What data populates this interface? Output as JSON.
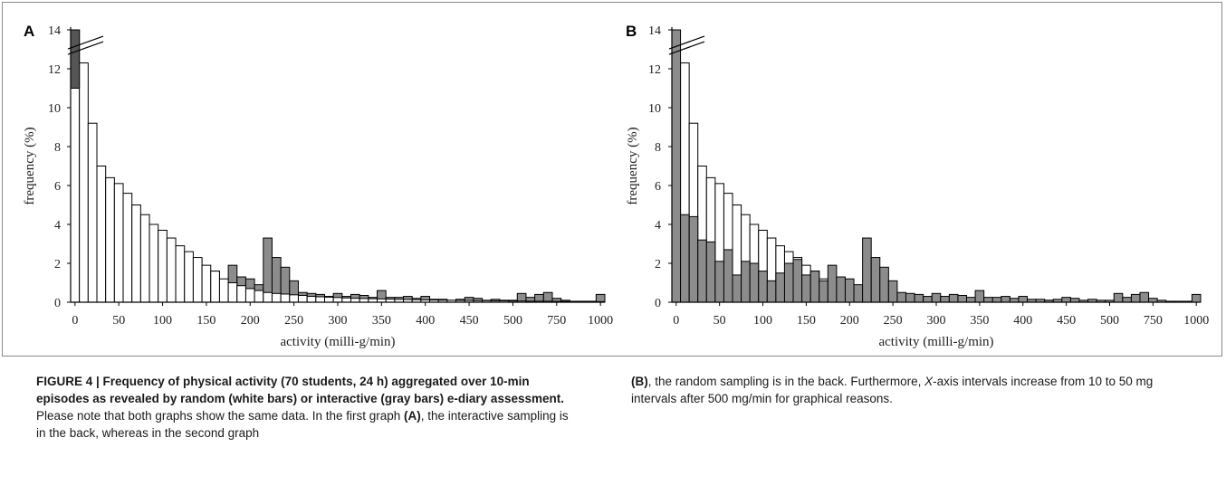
{
  "caption": {
    "figure_label": "FIGURE 4 | Frequency of physical activity (70 students, 24 h) aggregated over 10-min episodes as revealed by random (white bars) or interactive (gray bars) e-diary assessment.",
    "text_1": " Please note that both graphs show the same data. In the first graph ",
    "ref_a": "(A)",
    "text_2": ", the interactive sampling is in the back, whereas in the second graph ",
    "ref_b": "(B)",
    "text_3": ", the random sampling is in the back. Furthermore, ",
    "x_italic": "X",
    "text_4": "-axis intervals increase from 10 to 50 mg intervals after 500 mg/min for graphical reasons."
  },
  "colors": {
    "random": "#ffffff",
    "interactive": "#8c8c8c",
    "interactive_top": "#555555",
    "stroke": "#000000"
  },
  "chart_data": [
    {
      "type": "bar",
      "panel": "A",
      "draw_order": "interactive-back",
      "xlabel": "activity (milli-g/min)",
      "ylabel": "frequency (%)",
      "ylim": [
        0,
        14
      ],
      "y_ticks": [
        "0",
        "2",
        "4",
        "6",
        "8",
        "10",
        "12",
        "14"
      ],
      "x_tick_labels": [
        "0",
        "50",
        "100",
        "150",
        "200",
        "250",
        "300",
        "350",
        "400",
        "450",
        "500",
        "750",
        "1000"
      ],
      "axis_break": true,
      "categories": [
        "0",
        "10",
        "20",
        "30",
        "40",
        "50",
        "60",
        "70",
        "80",
        "90",
        "100",
        "110",
        "120",
        "130",
        "140",
        "150",
        "160",
        "170",
        "180",
        "190",
        "200",
        "210",
        "220",
        "230",
        "240",
        "250",
        "260",
        "270",
        "280",
        "290",
        "300",
        "310",
        "320",
        "330",
        "340",
        "350",
        "360",
        "370",
        "380",
        "390",
        "400",
        "410",
        "420",
        "430",
        "440",
        "450",
        "460",
        "470",
        "480",
        "490",
        "500",
        "550",
        "600",
        "650",
        "700",
        "750",
        "800",
        "850",
        "900",
        "950",
        "1000"
      ],
      "series": [
        {
          "name": "random",
          "values": [
            11,
            12.3,
            9.2,
            7,
            6.4,
            6.1,
            5.6,
            5,
            4.5,
            4,
            3.7,
            3.3,
            2.9,
            2.6,
            2.3,
            1.9,
            1.6,
            1.2,
            1,
            0.85,
            0.7,
            0.6,
            0.5,
            0.45,
            0.42,
            0.38,
            0.35,
            0.3,
            0.28,
            0.26,
            0.24,
            0.22,
            0.2,
            0.19,
            0.18,
            0.17,
            0.16,
            0.15,
            0.14,
            0.13,
            0.12,
            0.11,
            0.1,
            0.1,
            0.09,
            0.09,
            0.08,
            0.08,
            0.07,
            0.07,
            0.06,
            0.06,
            0.05,
            0.05,
            0.05,
            0.04,
            0.04,
            0.04,
            0.03,
            0.03,
            0.03
          ]
        },
        {
          "name": "interactive",
          "values": [
            14,
            4.5,
            4.4,
            3.2,
            3.1,
            2.1,
            2.7,
            1.4,
            2.1,
            2,
            1.6,
            1.1,
            1.5,
            2,
            2.2,
            1.4,
            1.6,
            1.1,
            1.9,
            1.3,
            1.2,
            0.9,
            3.3,
            2.3,
            1.8,
            1.1,
            0.5,
            0.45,
            0.4,
            0.3,
            0.45,
            0.3,
            0.4,
            0.35,
            0.25,
            0.6,
            0.25,
            0.25,
            0.3,
            0.2,
            0.3,
            0.15,
            0.15,
            0.1,
            0.15,
            0.25,
            0.2,
            0.1,
            0.15,
            0.1,
            0.1,
            0.45,
            0.25,
            0.4,
            0.5,
            0.2,
            0.1,
            0.05,
            0.05,
            0.05,
            0.4
          ]
        }
      ]
    },
    {
      "type": "bar",
      "panel": "B",
      "draw_order": "random-back",
      "xlabel": "activity (milli-g/min)",
      "ylabel": "frequency (%)",
      "ylim": [
        0,
        14
      ],
      "y_ticks": [
        "0",
        "2",
        "4",
        "6",
        "8",
        "10",
        "12",
        "14"
      ],
      "x_tick_labels": [
        "0",
        "50",
        "100",
        "150",
        "200",
        "250",
        "300",
        "350",
        "400",
        "450",
        "500",
        "750",
        "1000"
      ],
      "axis_break": true,
      "categories": [
        "0",
        "10",
        "20",
        "30",
        "40",
        "50",
        "60",
        "70",
        "80",
        "90",
        "100",
        "110",
        "120",
        "130",
        "140",
        "150",
        "160",
        "170",
        "180",
        "190",
        "200",
        "210",
        "220",
        "230",
        "240",
        "250",
        "260",
        "270",
        "280",
        "290",
        "300",
        "310",
        "320",
        "330",
        "340",
        "350",
        "360",
        "370",
        "380",
        "390",
        "400",
        "410",
        "420",
        "430",
        "440",
        "450",
        "460",
        "470",
        "480",
        "490",
        "500",
        "550",
        "600",
        "650",
        "700",
        "750",
        "800",
        "850",
        "900",
        "950",
        "1000"
      ],
      "series": [
        {
          "name": "random",
          "values": [
            11,
            12.3,
            9.2,
            7,
            6.4,
            6.1,
            5.6,
            5,
            4.5,
            4,
            3.7,
            3.3,
            2.9,
            2.6,
            2.3,
            1.9,
            1.6,
            1.2,
            1,
            0.85,
            0.7,
            0.6,
            0.5,
            0.45,
            0.42,
            0.38,
            0.35,
            0.3,
            0.28,
            0.26,
            0.24,
            0.22,
            0.2,
            0.19,
            0.18,
            0.17,
            0.16,
            0.15,
            0.14,
            0.13,
            0.12,
            0.11,
            0.1,
            0.1,
            0.09,
            0.09,
            0.08,
            0.08,
            0.07,
            0.07,
            0.06,
            0.06,
            0.05,
            0.05,
            0.05,
            0.04,
            0.04,
            0.04,
            0.03,
            0.03,
            0.03
          ]
        },
        {
          "name": "interactive",
          "values": [
            14,
            4.5,
            4.4,
            3.2,
            3.1,
            2.1,
            2.7,
            1.4,
            2.1,
            2,
            1.6,
            1.1,
            1.5,
            2,
            2.2,
            1.4,
            1.6,
            1.1,
            1.9,
            1.3,
            1.2,
            0.9,
            3.3,
            2.3,
            1.8,
            1.1,
            0.5,
            0.45,
            0.4,
            0.3,
            0.45,
            0.3,
            0.4,
            0.35,
            0.25,
            0.6,
            0.25,
            0.25,
            0.3,
            0.2,
            0.3,
            0.15,
            0.15,
            0.1,
            0.15,
            0.25,
            0.2,
            0.1,
            0.15,
            0.1,
            0.1,
            0.45,
            0.25,
            0.4,
            0.5,
            0.2,
            0.1,
            0.05,
            0.05,
            0.05,
            0.4
          ]
        }
      ]
    }
  ]
}
